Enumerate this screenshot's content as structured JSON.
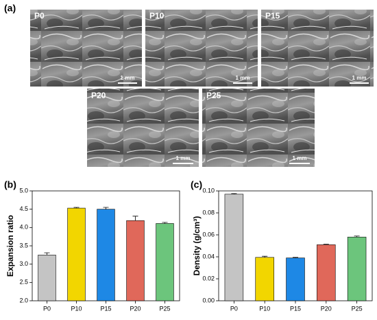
{
  "figure_label": "(a)",
  "images": [
    {
      "label": "P0",
      "scale_bar": "1 mm"
    },
    {
      "label": "P10",
      "scale_bar": "1 mm"
    },
    {
      "label": "P15",
      "scale_bar": "1 mm"
    },
    {
      "label": "P20",
      "scale_bar": "1 mm"
    },
    {
      "label": "P25",
      "scale_bar": "1 mm"
    }
  ],
  "chart_data": [
    {
      "type": "bar",
      "panel_label": "(b)",
      "y_label": "Expansion ratio",
      "categories": [
        "P0",
        "P10",
        "P15",
        "P20",
        "P25"
      ],
      "values": [
        3.25,
        4.53,
        4.5,
        4.19,
        4.11
      ],
      "errors": [
        0.06,
        0.02,
        0.05,
        0.12,
        0.03
      ],
      "colors": [
        "#c4c4c4",
        "#f2d600",
        "#1e88e5",
        "#e0685a",
        "#6cc57c"
      ],
      "ylim": [
        2.0,
        5.0
      ],
      "yticks": [
        {
          "value": 2.0,
          "label": "2.0"
        },
        2.5,
        {
          "value": 3.0,
          "label": "3.0"
        },
        3.5,
        {
          "value": 4.0,
          "label": "4.0"
        },
        4.5,
        {
          "value": 5.0,
          "label": "5.0"
        }
      ]
    },
    {
      "type": "bar",
      "panel_label": "(c)",
      "y_label": "Density (g/cm³)",
      "categories": [
        "P0",
        "P10",
        "P15",
        "P20",
        "P25"
      ],
      "values": [
        0.097,
        0.0395,
        0.039,
        0.051,
        0.058
      ],
      "errors": [
        0.0006,
        0.001,
        0.0005,
        0.0005,
        0.0009
      ],
      "colors": [
        "#c4c4c4",
        "#f2d600",
        "#1e88e5",
        "#e0685a",
        "#6cc57c"
      ],
      "ylim": [
        0,
        0.1
      ],
      "yticks": [
        {
          "value": 0,
          "label": "0.00"
        },
        0.02,
        0.04,
        0.06,
        0.08,
        {
          "value": 0.1,
          "label": "0.10"
        }
      ]
    }
  ]
}
